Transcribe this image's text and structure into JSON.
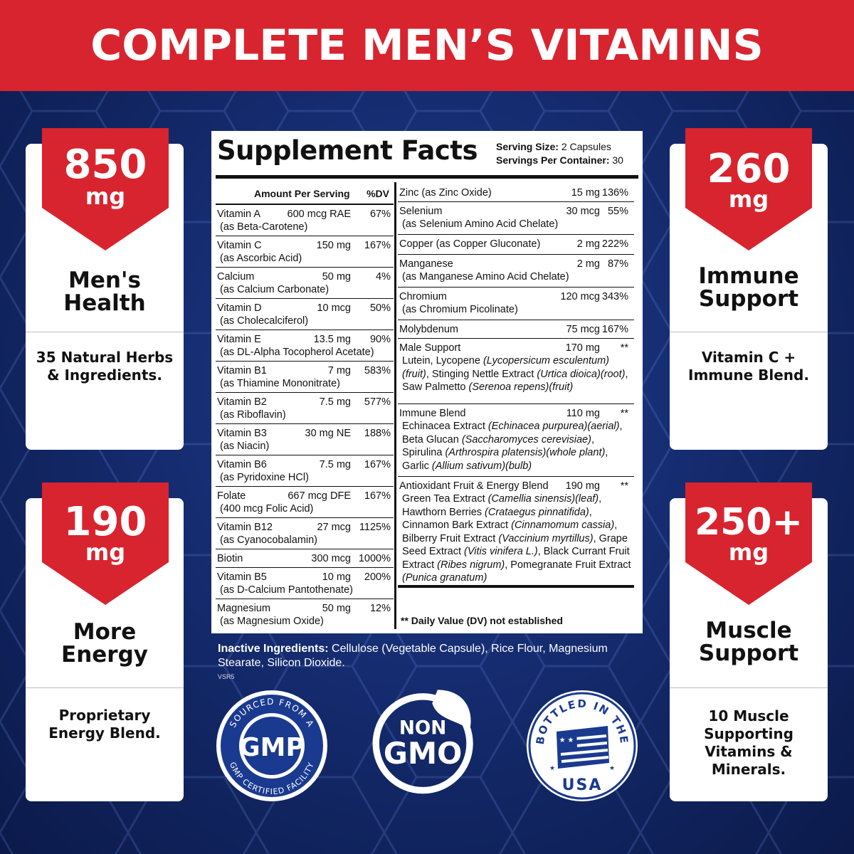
{
  "banner": {
    "title": "COMPLETE MEN’S VITAMINS"
  },
  "cards": {
    "top_left": {
      "amount": "850",
      "unit": "mg",
      "label_line1": "Men's",
      "label_line2": "Health",
      "desc_line1": "35 Natural Herbs",
      "desc_line2": "& Ingredients."
    },
    "bottom_left": {
      "amount": "190",
      "unit": "mg",
      "label_line1": "More",
      "label_line2": "Energy",
      "desc_line1": "Proprietary",
      "desc_line2": "Energy Blend."
    },
    "top_right": {
      "amount": "260",
      "unit": "mg",
      "label_line1": "Immune",
      "label_line2": "Support",
      "desc_line1": "Vitamin C +",
      "desc_line2": "Immune Blend."
    },
    "bottom_right": {
      "amount": "250+",
      "unit": "mg",
      "label_line1": "Muscle",
      "label_line2": "Support",
      "desc_line1": "10 Muscle",
      "desc_line2": "Supporting",
      "desc_line3": "Vitamins &",
      "desc_line4": "Minerals."
    }
  },
  "facts": {
    "title": "Supplement Facts",
    "serving_size_label": "Serving Size:",
    "serving_size_value": "2 Capsules",
    "servings_label": "Servings Per Container:",
    "servings_value": "30",
    "header_amount": "Amount Per Serving",
    "header_dv": "%DV",
    "left_rows": [
      {
        "name": "Vitamin A",
        "sub": "(as Beta-Carotene)",
        "amount": "600 mcg RAE",
        "dv": "67%"
      },
      {
        "name": "Vitamin C",
        "sub": "(as Ascorbic Acid)",
        "amount": "150 mg",
        "dv": "167%"
      },
      {
        "name": "Calcium",
        "sub": "(as Calcium Carbonate)",
        "amount": "50 mg",
        "dv": "4%"
      },
      {
        "name": "Vitamin D",
        "sub": "(as Cholecalciferol)",
        "amount": "10 mcg",
        "dv": "50%"
      },
      {
        "name": "Vitamin E",
        "sub": "(as DL-Alpha Tocopherol Acetate)",
        "amount": "13.5 mg",
        "dv": "90%"
      },
      {
        "name": "Vitamin B1",
        "sub": "(as Thiamine Mononitrate)",
        "amount": "7 mg",
        "dv": "583%"
      },
      {
        "name": "Vitamin B2",
        "sub": "(as Riboflavin)",
        "amount": "7.5 mg",
        "dv": "577%"
      },
      {
        "name": "Vitamin B3",
        "sub": "(as Niacin)",
        "amount": "30 mg NE",
        "dv": "188%"
      },
      {
        "name": "Vitamin B6",
        "sub": "(as Pyridoxine HCl)",
        "amount": "7.5 mg",
        "dv": "167%"
      },
      {
        "name": "Folate",
        "sub": "(400 mcg Folic Acid)",
        "amount": "667 mcg DFE",
        "dv": "167%"
      },
      {
        "name": "Vitamin B12",
        "sub": "(as Cyanocobalamin)",
        "amount": "27 mcg",
        "dv": "1125%"
      },
      {
        "name": "Biotin",
        "sub": "",
        "amount": "300 mcg",
        "dv": "1000%"
      },
      {
        "name": "Vitamin B5",
        "sub": "(as D-Calcium Pantothenate)",
        "amount": "10 mg",
        "dv": "200%"
      },
      {
        "name": "Magnesium",
        "sub": "(as Magnesium Oxide)",
        "amount": "50 mg",
        "dv": "12%"
      }
    ],
    "right_rows": [
      {
        "name": "Zinc (as Zinc Oxide)",
        "sub": "",
        "amount": "15 mg",
        "dv": "136%"
      },
      {
        "name": "Selenium",
        "sub": "(as Selenium Amino Acid Chelate)",
        "amount": "30 mcg",
        "dv": "55%"
      },
      {
        "name": "Copper (as Copper Gluconate)",
        "sub": "",
        "amount": "2 mg",
        "dv": "222%"
      },
      {
        "name": "Manganese",
        "sub": "(as Manganese Amino Acid Chelate)",
        "amount": "2 mg",
        "dv": "87%"
      },
      {
        "name": "Chromium",
        "sub": "(as Chromium Picolinate)",
        "amount": "120 mcg",
        "dv": "343%"
      },
      {
        "name": "Molybdenum",
        "sub": "",
        "amount": "75 mcg",
        "dv": "167%"
      }
    ],
    "blends": {
      "male": {
        "name": "Male Support",
        "amount": "170 mg",
        "dv": "**"
      },
      "immune": {
        "name": "Immune Blend",
        "amount": "110 mg",
        "dv": "**"
      },
      "antioxidant": {
        "name": "Antioxidant Fruit & Energy Blend",
        "amount": "190 mg",
        "dv": "**"
      }
    },
    "footnote": "** Daily Value (DV) not established"
  },
  "inactive": {
    "label": "Inactive Ingredients:",
    "text": " Cellulose (Vegetable Capsule), Rice Flour, Magnesium Stearate, Silicon Dioxide.",
    "code": "VSR5"
  },
  "badges": {
    "gmp_top": "SOURCED FROM A",
    "gmp_center": "GMP",
    "gmp_bottom": "GMP CERTIFIED FACILITY",
    "gmo_line1": "NON",
    "gmo_line2": "GMO",
    "usa_top": "BOTTLED IN THE",
    "usa_bottom": "USA"
  },
  "colors": {
    "red": "#d8242f",
    "navy": "#132868",
    "white": "#ffffff"
  }
}
